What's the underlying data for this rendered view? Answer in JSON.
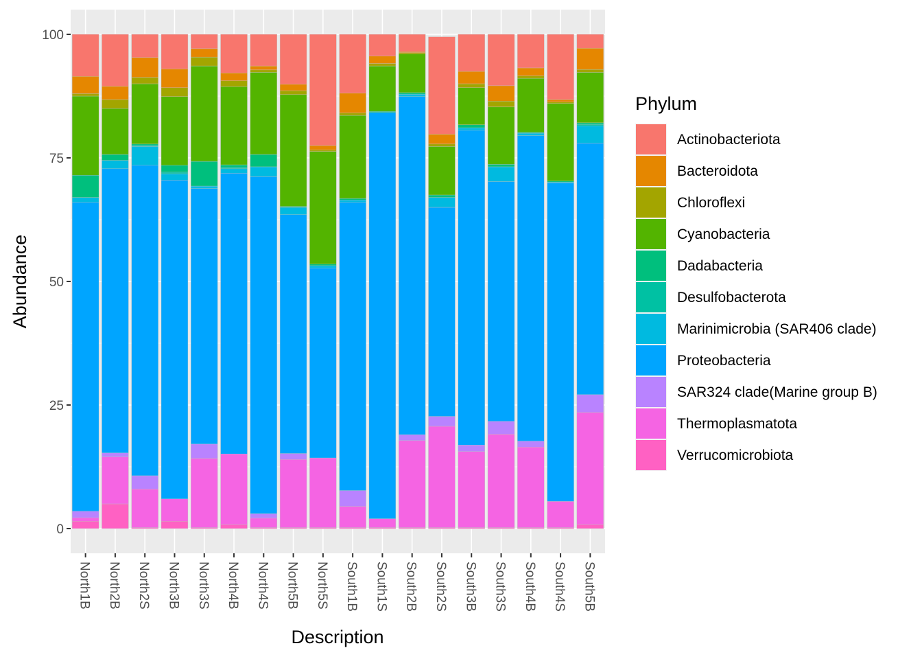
{
  "chart_data": {
    "type": "bar",
    "stacked": true,
    "xlabel": "Description",
    "ylabel": "Abundance",
    "ylim": [
      -5,
      105
    ],
    "yticks": [
      0,
      25,
      50,
      75,
      100
    ],
    "grid": true,
    "legend": {
      "title": "Phylum",
      "position": "right"
    },
    "categories": [
      "North1B",
      "North2B",
      "North2S",
      "North3B",
      "North3S",
      "North4B",
      "North4S",
      "North5B",
      "North5S",
      "South1B",
      "South1S",
      "South2B",
      "South2S",
      "South3B",
      "South3S",
      "South4B",
      "South4S",
      "South5B"
    ],
    "series": [
      {
        "name": "Verrucomicrobiota",
        "color": "#FF61C3",
        "values": [
          1.5,
          5.0,
          0.2,
          1.5,
          0.2,
          0.8,
          0.2,
          0.2,
          0.2,
          0.2,
          0.2,
          0.2,
          0.2,
          0.2,
          0.2,
          0.2,
          0.2,
          0.8
        ]
      },
      {
        "name": "Thermoplasmatota",
        "color": "#F564E3",
        "values": [
          0.7,
          9.5,
          7.8,
          4.5,
          14.0,
          14.3,
          1.9,
          13.8,
          14.1,
          4.3,
          1.8,
          17.6,
          20.5,
          15.4,
          18.9,
          16.3,
          5.3,
          22.7
        ]
      },
      {
        "name": "SAR324 clade(Marine group B)",
        "color": "#B983FF",
        "values": [
          1.3,
          0.8,
          2.7,
          0.0,
          2.9,
          0.0,
          0.9,
          1.2,
          0.0,
          3.2,
          0.0,
          1.2,
          2.0,
          1.3,
          2.6,
          1.2,
          0.0,
          3.6
        ]
      },
      {
        "name": "Proteobacteria",
        "color": "#00A5FF",
        "values": [
          62.5,
          57.5,
          62.8,
          64.5,
          51.7,
          56.8,
          68.2,
          48.3,
          38.4,
          58.3,
          82.2,
          68.4,
          42.3,
          63.7,
          48.5,
          61.8,
          64.4,
          50.9
        ]
      },
      {
        "name": "Marinimicrobia (SAR406 clade)",
        "color": "#00BAE0",
        "values": [
          1.0,
          1.7,
          3.8,
          1.3,
          0.5,
          0.9,
          2.0,
          1.5,
          0.5,
          0.5,
          0.0,
          0.5,
          2.0,
          0.5,
          3.0,
          0.5,
          0.2,
          3.5
        ]
      },
      {
        "name": "Desulfobacterota",
        "color": "#00C1A3",
        "values": [
          0.0,
          0.0,
          0.3,
          0.3,
          0.0,
          0.3,
          0.0,
          0.0,
          0.0,
          0.0,
          0.0,
          0.0,
          0.0,
          0.0,
          0.0,
          0.0,
          0.0,
          0.3
        ]
      },
      {
        "name": "Dadabacteria",
        "color": "#00BF7D",
        "values": [
          4.5,
          1.2,
          0.2,
          1.4,
          5.0,
          0.5,
          2.5,
          0.2,
          0.3,
          0.3,
          0.2,
          0.3,
          0.5,
          0.6,
          0.5,
          0.2,
          0.2,
          0.3
        ]
      },
      {
        "name": "Cyanobacteria",
        "color": "#53B400",
        "values": [
          16.0,
          9.3,
          12.2,
          13.9,
          19.3,
          15.8,
          16.6,
          22.6,
          22.8,
          16.8,
          9.2,
          7.8,
          9.8,
          7.5,
          11.6,
          10.9,
          15.7,
          10.2
        ]
      },
      {
        "name": "Chloroflexi",
        "color": "#A3A500",
        "values": [
          0.5,
          1.8,
          1.3,
          1.8,
          1.8,
          1.2,
          0.5,
          0.8,
          0.3,
          0.5,
          0.5,
          0.3,
          0.5,
          0.8,
          1.2,
          0.5,
          0.3,
          0.6
        ]
      },
      {
        "name": "Bacteroidota",
        "color": "#E58700",
        "values": [
          3.5,
          2.7,
          4.0,
          3.8,
          1.7,
          1.6,
          0.8,
          1.3,
          0.9,
          4.0,
          1.5,
          0.2,
          2.0,
          2.5,
          3.1,
          1.6,
          0.5,
          4.3
        ]
      },
      {
        "name": "Actinobacteriota",
        "color": "#F8766D",
        "values": [
          8.5,
          10.5,
          4.7,
          7.0,
          2.9,
          7.8,
          6.4,
          10.1,
          22.5,
          11.9,
          4.4,
          3.5,
          19.7,
          7.5,
          10.4,
          6.8,
          13.2,
          2.8
        ]
      }
    ]
  }
}
